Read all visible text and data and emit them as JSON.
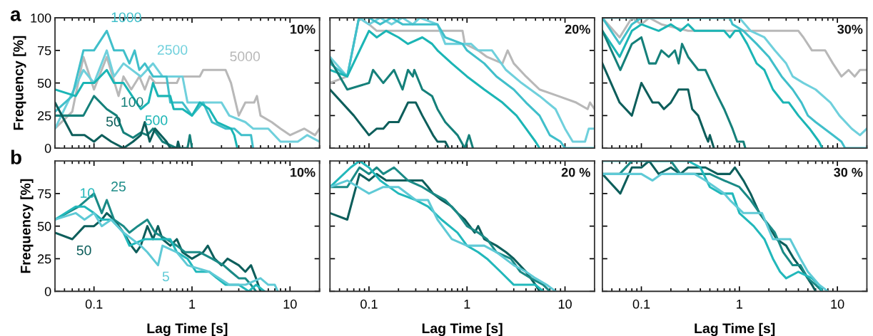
{
  "chart_data": [
    {
      "type": "line",
      "title": "a",
      "ylabel": "Frequency [%]",
      "xlim": [
        0.04,
        20
      ],
      "ylim": [
        0,
        100
      ],
      "log": "x",
      "xticks": [
        0.1,
        1,
        10
      ],
      "yticks": [
        0,
        25,
        50,
        75,
        100
      ],
      "tick_labels": "y",
      "grid": false,
      "annotations": [
        "10%",
        {
          "text": "1000",
          "x": 0.135,
          "y": 90
        },
        {
          "text": "2500",
          "x": 0.4,
          "y": 65
        },
        {
          "text": "5000",
          "x": 2.2,
          "y": 60
        },
        {
          "text": "500",
          "x": 0.3,
          "y": 30
        },
        {
          "text": "100",
          "x": 0.17,
          "y": 25
        },
        {
          "text": "50",
          "x": 0.12,
          "y": 10
        }
      ],
      "series": [
        {
          "color": "#b8b8b8",
          "x": [
            0.04,
            0.06,
            0.078,
            0.1,
            0.135,
            0.178,
            0.2,
            0.24,
            0.29,
            0.33,
            0.37,
            0.42,
            0.7,
            0.75,
            1.2,
            1.3,
            2.2,
            2.5,
            3.0,
            3.5,
            4.3,
            4.6,
            5,
            6.5,
            8,
            10,
            14,
            18,
            20
          ],
          "values": [
            15,
            28,
            70,
            45,
            70,
            40,
            55,
            45,
            55,
            45,
            55,
            50,
            50,
            55,
            55,
            60,
            60,
            50,
            25,
            35,
            35,
            40,
            25,
            20,
            15,
            10,
            15,
            10,
            15
          ]
        },
        {
          "color": "#6fd0dc",
          "x": [
            0.04,
            0.078,
            0.1,
            0.135,
            0.16,
            0.2,
            0.3,
            0.4,
            0.5,
            0.8,
            0.9,
            2.0,
            2.4,
            3.5,
            4.2,
            6,
            8,
            12,
            15,
            20
          ],
          "values": [
            15,
            60,
            50,
            75,
            55,
            65,
            55,
            65,
            55,
            55,
            35,
            35,
            25,
            20,
            15,
            15,
            5,
            5,
            10,
            5
          ]
        },
        {
          "color": "#40bfca",
          "x": [
            0.04,
            0.06,
            0.078,
            0.1,
            0.135,
            0.16,
            0.2,
            0.23,
            0.26,
            0.29,
            0.33,
            0.4,
            0.55,
            0.6,
            0.8,
            1.0,
            1.3,
            1.6,
            2.2,
            2.7,
            3.2,
            4.0,
            4.2
          ],
          "values": [
            28,
            40,
            75,
            75,
            90,
            75,
            75,
            65,
            75,
            60,
            65,
            55,
            55,
            35,
            35,
            25,
            35,
            20,
            15,
            15,
            10,
            10,
            0
          ]
        },
        {
          "color": "#1bb5b5",
          "x": [
            0.04,
            0.065,
            0.078,
            0.1,
            0.135,
            0.16,
            0.2,
            0.3,
            0.36,
            0.4,
            0.45,
            0.6,
            0.65,
            0.8,
            1.0,
            1.2,
            1.5,
            1.8,
            2.5,
            2.7,
            2.9
          ],
          "values": [
            45,
            40,
            50,
            50,
            60,
            50,
            50,
            30,
            35,
            50,
            40,
            40,
            30,
            30,
            25,
            35,
            30,
            20,
            15,
            10,
            0
          ]
        },
        {
          "color": "#15807a",
          "x": [
            0.04,
            0.078,
            0.1,
            0.135,
            0.17,
            0.2,
            0.25,
            0.3,
            0.35,
            0.4,
            0.5,
            0.7,
            0.9,
            0.95,
            1.0
          ],
          "values": [
            25,
            25,
            40,
            30,
            25,
            12,
            8,
            12,
            10,
            15,
            5,
            0,
            0,
            10,
            0
          ]
        },
        {
          "color": "#0d5e5b",
          "x": [
            0.04,
            0.06,
            0.08,
            0.1,
            0.12,
            0.15,
            0.2,
            0.25,
            0.3,
            0.33,
            0.37,
            0.42,
            0.48,
            0.55,
            0.6,
            0.7,
            0.72,
            0.75
          ],
          "values": [
            35,
            10,
            10,
            5,
            10,
            5,
            0,
            5,
            10,
            20,
            5,
            15,
            10,
            5,
            0,
            0,
            5,
            0
          ]
        }
      ]
    },
    {
      "type": "line",
      "xlim": [
        0.04,
        20
      ],
      "ylim": [
        0,
        100
      ],
      "log": "x",
      "xticks": [
        0.1,
        1,
        10
      ],
      "yticks": [
        0,
        25,
        50,
        75,
        100
      ],
      "tick_labels": false,
      "grid": false,
      "annotations": [
        "20%"
      ],
      "series": [
        {
          "color": "#b8b8b8",
          "x": [
            0.04,
            0.06,
            0.079,
            0.1,
            0.12,
            0.9,
            0.95,
            1.3,
            1.6,
            2.3,
            2.6,
            3.0,
            4.0,
            5.5,
            8.5,
            13,
            17,
            18,
            20
          ],
          "values": [
            50,
            55,
            100,
            95,
            90,
            90,
            80,
            75,
            70,
            65,
            75,
            65,
            55,
            45,
            40,
            35,
            30,
            35,
            30
          ]
        },
        {
          "color": "#6fd0dc",
          "x": [
            0.04,
            0.06,
            0.079,
            0.1,
            0.13,
            0.17,
            0.22,
            0.28,
            0.33,
            0.5,
            0.6,
            1.1,
            1.3,
            1.8,
            2.5,
            3.6,
            5.5,
            8,
            10,
            12,
            16,
            17.5,
            20
          ],
          "values": [
            70,
            55,
            100,
            95,
            100,
            95,
            100,
            95,
            100,
            95,
            80,
            80,
            75,
            75,
            60,
            50,
            40,
            30,
            15,
            5,
            5,
            15,
            15
          ]
        },
        {
          "color": "#40bfca",
          "x": [
            0.04,
            0.06,
            0.079,
            0.1,
            0.13,
            0.17,
            0.22,
            0.5,
            0.6,
            0.9,
            1.0,
            1.5,
            2,
            3,
            4,
            5.5,
            7,
            9,
            10,
            20
          ],
          "values": [
            65,
            55,
            100,
            100,
            95,
            100,
            95,
            95,
            85,
            80,
            75,
            65,
            55,
            45,
            35,
            25,
            10,
            5,
            0,
            0
          ]
        },
        {
          "color": "#1bb5b5",
          "x": [
            0.04,
            0.06,
            0.1,
            0.12,
            0.15,
            0.2,
            0.25,
            0.35,
            0.44,
            0.5,
            0.7,
            1.0,
            1.5,
            2.3,
            3.2,
            4,
            5,
            5.5
          ],
          "values": [
            60,
            55,
            90,
            85,
            90,
            85,
            80,
            85,
            80,
            75,
            65,
            55,
            45,
            35,
            25,
            15,
            5,
            0
          ]
        },
        {
          "color": "#15807a",
          "x": [
            0.04,
            0.06,
            0.1,
            0.11,
            0.14,
            0.18,
            0.22,
            0.25,
            0.28,
            0.29,
            0.35,
            0.44,
            0.5,
            0.6,
            0.8,
            0.95,
            1.05,
            1.15
          ],
          "values": [
            68,
            45,
            50,
            60,
            50,
            60,
            45,
            60,
            55,
            60,
            45,
            40,
            30,
            20,
            10,
            0,
            10,
            0
          ]
        },
        {
          "color": "#0d5e5b",
          "x": [
            0.04,
            0.07,
            0.1,
            0.12,
            0.14,
            0.16,
            0.2,
            0.25,
            0.3,
            0.35,
            0.45,
            0.5,
            0.6,
            0.65
          ],
          "values": [
            45,
            25,
            10,
            15,
            15,
            20,
            20,
            35,
            35,
            25,
            10,
            5,
            5,
            0
          ]
        }
      ]
    },
    {
      "type": "line",
      "xlim": [
        0.04,
        20
      ],
      "ylim": [
        0,
        100
      ],
      "log": "x",
      "xticks": [
        0.1,
        1,
        10
      ],
      "yticks": [
        0,
        25,
        50,
        75,
        100
      ],
      "tick_labels": false,
      "grid": false,
      "annotations": [
        "30%"
      ],
      "series": [
        {
          "color": "#b8b8b8",
          "x": [
            0.04,
            0.06,
            0.08,
            0.1,
            0.12,
            0.16,
            0.3,
            4.0,
            4.5,
            5.5,
            7.5,
            9,
            11,
            13,
            15,
            17,
            20
          ],
          "values": [
            100,
            85,
            100,
            95,
            100,
            95,
            90,
            90,
            85,
            75,
            75,
            65,
            55,
            60,
            55,
            60,
            60
          ]
        },
        {
          "color": "#6fd0dc",
          "x": [
            0.04,
            1.0,
            1.3,
            1.8,
            2.3,
            3,
            3.5,
            4.5,
            6,
            8.5,
            10.5,
            14,
            17,
            20
          ],
          "values": [
            100,
            100,
            90,
            85,
            75,
            65,
            55,
            50,
            45,
            35,
            25,
            15,
            10,
            15
          ]
        },
        {
          "color": "#40bfca",
          "x": [
            0.04,
            0.06,
            0.08,
            0.1,
            0.8,
            0.85,
            1.1,
            1.5,
            2,
            2.7,
            3.5,
            4.3,
            5,
            6,
            9,
            11,
            12,
            20
          ],
          "values": [
            100,
            80,
            95,
            100,
            100,
            95,
            90,
            80,
            70,
            55,
            45,
            35,
            25,
            20,
            10,
            5,
            0,
            0
          ]
        },
        {
          "color": "#1bb5b5",
          "x": [
            0.04,
            0.06,
            0.08,
            0.1,
            0.15,
            0.2,
            0.25,
            0.3,
            0.35,
            0.7,
            0.8,
            0.9,
            1.0,
            1.2,
            1.5,
            1.8,
            2.2,
            2.8,
            3.2,
            4,
            5.2,
            6.5,
            7
          ],
          "values": [
            90,
            70,
            90,
            95,
            90,
            95,
            90,
            95,
            90,
            90,
            85,
            90,
            90,
            80,
            65,
            60,
            45,
            35,
            35,
            25,
            15,
            5,
            0
          ]
        },
        {
          "color": "#15807a",
          "x": [
            0.04,
            0.061,
            0.08,
            0.1,
            0.12,
            0.14,
            0.16,
            0.19,
            0.22,
            0.24,
            0.26,
            0.3,
            0.38,
            0.45,
            0.52,
            0.6,
            0.7,
            0.85,
            0.95,
            1.1,
            1.15
          ],
          "values": [
            90,
            60,
            80,
            85,
            65,
            65,
            75,
            70,
            75,
            65,
            80,
            70,
            60,
            60,
            50,
            40,
            30,
            15,
            5,
            5,
            0
          ]
        },
        {
          "color": "#0d5e5b",
          "x": [
            0.04,
            0.06,
            0.08,
            0.1,
            0.13,
            0.15,
            0.17,
            0.2,
            0.24,
            0.3,
            0.33,
            0.38,
            0.45,
            0.48,
            0.5,
            0.55
          ],
          "values": [
            65,
            35,
            25,
            50,
            35,
            35,
            30,
            35,
            45,
            45,
            30,
            25,
            10,
            5,
            10,
            0
          ]
        }
      ]
    },
    {
      "type": "line",
      "title": "b",
      "xlabel": "Lag Time [s]",
      "ylabel": "Frequency [%]",
      "xlim": [
        0.04,
        20
      ],
      "ylim": [
        0,
        100
      ],
      "log": "x",
      "xticks": [
        0.1,
        1,
        10
      ],
      "yticks": [
        0,
        25,
        50,
        75
      ],
      "grid": false,
      "annotations": [
        "10%",
        {
          "text": "10",
          "x": 0.065,
          "y": 65
        },
        {
          "text": "25",
          "x": 0.135,
          "y": 70
        },
        {
          "text": "50",
          "x": 0.06,
          "y": 40
        },
        {
          "text": "5",
          "x": 0.45,
          "y": 20
        }
      ],
      "series": [
        {
          "color": "#0d5e5b",
          "x": [
            0.04,
            0.06,
            0.08,
            0.1,
            0.12,
            0.135,
            0.16,
            0.2,
            0.24,
            0.27,
            0.3,
            0.35,
            0.4,
            0.45,
            0.5,
            0.6,
            0.7,
            0.8,
            1.0,
            1.3,
            1.45,
            1.7,
            2.0,
            2.3,
            3,
            3.5,
            4,
            4.5,
            5
          ],
          "values": [
            45,
            40,
            50,
            50,
            55,
            60,
            55,
            45,
            35,
            30,
            35,
            50,
            40,
            50,
            40,
            35,
            40,
            30,
            25,
            30,
            35,
            25,
            20,
            25,
            20,
            15,
            20,
            10,
            0
          ]
        },
        {
          "color": "#1a8a86",
          "x": [
            0.04,
            0.07,
            0.1,
            0.12,
            0.135,
            0.16,
            0.2,
            0.23,
            0.28,
            0.35,
            0.42,
            0.55,
            0.7,
            0.85,
            1.2,
            1.6,
            2.1,
            2.5,
            3,
            3.5,
            4,
            4.5
          ],
          "values": [
            55,
            65,
            75,
            60,
            70,
            55,
            50,
            45,
            50,
            55,
            45,
            40,
            35,
            30,
            30,
            25,
            20,
            15,
            10,
            10,
            5,
            0
          ]
        },
        {
          "color": "#22b8bb",
          "x": [
            0.04,
            0.065,
            0.08,
            0.1,
            0.12,
            0.15,
            0.2,
            0.23,
            0.33,
            0.6,
            0.7,
            0.9,
            1.1,
            1.5,
            1.8,
            2.2,
            3,
            3.8,
            4.5,
            5.5
          ],
          "values": [
            55,
            65,
            65,
            60,
            55,
            55,
            45,
            35,
            40,
            40,
            30,
            25,
            15,
            15,
            10,
            5,
            5,
            0,
            5,
            0
          ]
        },
        {
          "color": "#5fcad6",
          "x": [
            0.04,
            0.065,
            0.08,
            0.1,
            0.12,
            0.15,
            0.2,
            0.3,
            0.35,
            0.45,
            0.5,
            0.7,
            0.9,
            1.5,
            2.4,
            3.5,
            5,
            6,
            7,
            7.5
          ],
          "values": [
            55,
            60,
            55,
            60,
            50,
            55,
            45,
            35,
            30,
            20,
            35,
            30,
            20,
            15,
            5,
            5,
            10,
            5,
            5,
            0
          ]
        }
      ]
    },
    {
      "type": "line",
      "xlabel": "Lag Time [s]",
      "xlim": [
        0.04,
        20
      ],
      "ylim": [
        0,
        100
      ],
      "log": "x",
      "xticks": [
        0.1,
        1,
        10
      ],
      "yticks": [
        0,
        25,
        50,
        75
      ],
      "tick_labels": "x",
      "grid": false,
      "annotations": [
        "20 %"
      ],
      "series": [
        {
          "color": "#0d5e5b",
          "x": [
            0.04,
            0.06,
            0.08,
            0.1,
            0.12,
            0.15,
            0.3,
            0.35,
            0.4,
            0.45,
            0.55,
            0.7,
            0.8,
            0.95,
            1.2,
            1.3,
            1.5,
            2,
            2.5,
            3,
            4,
            5,
            5.5
          ],
          "values": [
            60,
            55,
            90,
            85,
            90,
            85,
            85,
            85,
            80,
            75,
            70,
            65,
            60,
            55,
            45,
            50,
            40,
            35,
            30,
            25,
            15,
            5,
            0
          ]
        },
        {
          "color": "#1a8a86",
          "x": [
            0.04,
            0.06,
            0.08,
            0.1,
            0.12,
            0.14,
            0.18,
            0.25,
            0.35,
            0.45,
            0.6,
            0.8,
            1.0,
            1.3,
            1.6,
            2,
            2.8,
            3.5,
            4.5,
            6,
            7
          ],
          "values": [
            80,
            80,
            95,
            90,
            95,
            90,
            95,
            85,
            80,
            75,
            70,
            60,
            50,
            45,
            40,
            30,
            25,
            15,
            10,
            5,
            0
          ]
        },
        {
          "color": "#22b8bb",
          "x": [
            0.04,
            0.065,
            0.08,
            0.1,
            0.13,
            0.2,
            0.3,
            0.4,
            0.55,
            0.8,
            1.0,
            1.3,
            1.6,
            2.2,
            3,
            5,
            6
          ],
          "values": [
            80,
            95,
            100,
            95,
            85,
            75,
            70,
            65,
            55,
            45,
            35,
            30,
            25,
            15,
            5,
            5,
            0
          ]
        },
        {
          "color": "#5fcad6",
          "x": [
            0.04,
            0.06,
            0.1,
            0.14,
            0.2,
            0.3,
            0.4,
            0.5,
            0.7,
            1.0,
            1.5,
            2,
            3,
            4,
            5,
            6.5,
            8
          ],
          "values": [
            80,
            85,
            75,
            80,
            80,
            70,
            70,
            55,
            40,
            35,
            35,
            30,
            20,
            15,
            10,
            5,
            0
          ]
        }
      ]
    },
    {
      "type": "line",
      "xlabel": "Lag Time [s]",
      "xlim": [
        0.04,
        20
      ],
      "ylim": [
        0,
        100
      ],
      "log": "x",
      "xticks": [
        0.1,
        1,
        10
      ],
      "yticks": [
        0,
        25,
        50,
        75
      ],
      "tick_labels": "x",
      "grid": false,
      "annotations": [
        "30 %"
      ],
      "series": [
        {
          "color": "#0d5e5b",
          "x": [
            0.04,
            0.061,
            0.08,
            0.1,
            0.12,
            0.15,
            0.2,
            0.25,
            0.3,
            0.45,
            0.6,
            0.8,
            0.9,
            1.1,
            1.3,
            1.6,
            2,
            2.4,
            3,
            3.6,
            4.5,
            5.5,
            6
          ],
          "values": [
            90,
            75,
            95,
            95,
            100,
            90,
            95,
            90,
            95,
            95,
            90,
            90,
            95,
            85,
            75,
            60,
            50,
            40,
            35,
            25,
            15,
            5,
            0
          ]
        },
        {
          "color": "#1a8a86",
          "x": [
            0.04,
            0.06,
            0.08,
            0.2,
            0.25,
            0.5,
            0.7,
            1.0,
            1.3,
            1.8,
            2.3,
            2.8,
            3.5,
            4.2,
            5,
            6,
            7
          ],
          "values": [
            90,
            90,
            100,
            100,
            90,
            90,
            85,
            80,
            70,
            55,
            45,
            30,
            20,
            20,
            10,
            5,
            0
          ]
        },
        {
          "color": "#22b8bb",
          "x": [
            0.04,
            0.3,
            0.4,
            0.5,
            0.65,
            0.85,
            1.0,
            1.4,
            1.8,
            2.2,
            2.6,
            3,
            4,
            5.5,
            6.5,
            7
          ],
          "values": [
            100,
            100,
            95,
            80,
            75,
            75,
            60,
            50,
            40,
            25,
            15,
            10,
            15,
            10,
            5,
            0
          ]
        },
        {
          "color": "#5fcad6",
          "x": [
            0.04,
            0.1,
            0.13,
            0.16,
            0.35,
            0.45,
            0.7,
            0.8,
            1.1,
            1.7,
            2.2,
            3.3,
            4.2,
            5,
            6.5,
            8
          ],
          "values": [
            90,
            90,
            85,
            90,
            90,
            85,
            75,
            70,
            60,
            60,
            40,
            40,
            25,
            15,
            5,
            0
          ]
        }
      ]
    }
  ]
}
